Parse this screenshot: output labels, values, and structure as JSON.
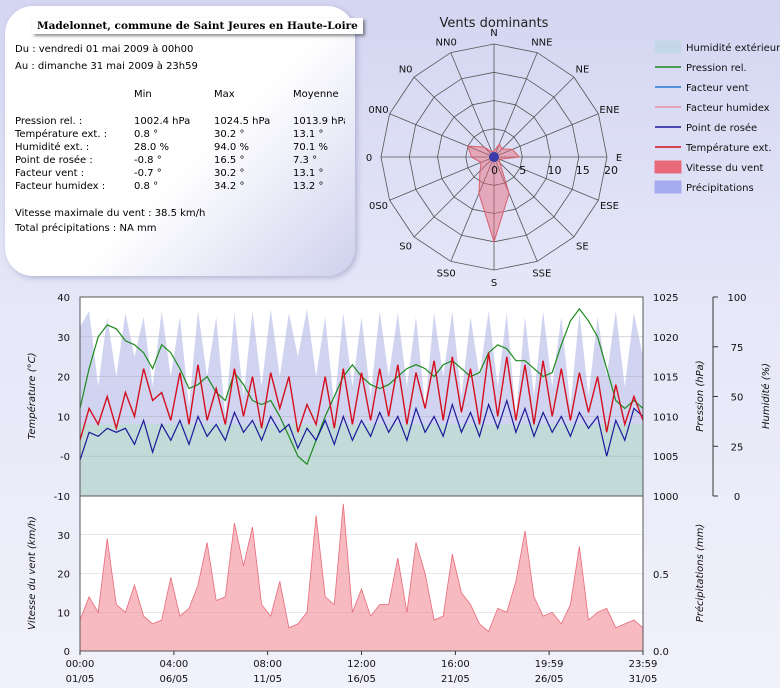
{
  "summary": {
    "station": "Madelonnet, commune de Saint Jeures en Haute-Loire",
    "from": "Du : vendredi 01 mai 2009 à 00h00",
    "to": "Au : dimanche 31 mai 2009 à 23h59",
    "headers": [
      "Min",
      "Max",
      "Moyenne"
    ],
    "rows": [
      {
        "label": "Pression rel. :",
        "min": "1002.4 hPa",
        "max": "1024.5 hPa",
        "avg": "1013.9 hPa"
      },
      {
        "label": "Température ext. :",
        "min": "0.8 °",
        "max": "30.2 °",
        "avg": "13.1 °"
      },
      {
        "label": "Humidité ext. :",
        "min": "28.0 %",
        "max": "94.0 %",
        "avg": "70.1 %"
      },
      {
        "label": "Point de rosée :",
        "min": "-0.8 °",
        "max": "16.5 °",
        "avg": "7.3 °"
      },
      {
        "label": "Facteur vent :",
        "min": "-0.7 °",
        "max": "30.2 °",
        "avg": "13.1 °"
      },
      {
        "label": "Facteur humidex :",
        "min": "0.8 °",
        "max": "34.2 °",
        "avg": "13.2 °"
      }
    ],
    "max_wind": "Vitesse maximale du vent : 38.5 km/h",
    "total_precip": "Total précipitations : NA mm"
  },
  "chart_data": [
    {
      "type": "radar",
      "title": "Vents dominants",
      "directions": [
        "N",
        "NNE",
        "NE",
        "ENE",
        "E",
        "ESE",
        "SE",
        "SSE",
        "S",
        "SS0",
        "S0",
        "0S0",
        "0",
        "0N0",
        "N0",
        "NN0"
      ],
      "radial_ticks": [
        0,
        5,
        10,
        15,
        20
      ],
      "rmax": 20,
      "series": [
        {
          "name": "Vitesse du vent",
          "values": [
            1,
            2.5,
            2,
            3.5,
            4.5,
            1,
            1.5,
            7,
            15,
            7,
            3.5,
            2.5,
            4,
            5,
            2.5,
            1
          ]
        }
      ]
    },
    {
      "type": "line",
      "x_ticks": [
        {
          "time": "00:00",
          "date": "01/05",
          "day": 0
        },
        {
          "time": "04:00",
          "date": "06/05",
          "day": 5.17
        },
        {
          "time": "08:00",
          "date": "11/05",
          "day": 10.33
        },
        {
          "time": "12:00",
          "date": "16/05",
          "day": 15.5
        },
        {
          "time": "16:00",
          "date": "21/05",
          "day": 20.67
        },
        {
          "time": "19:59",
          "date": "26/05",
          "day": 25.83
        },
        {
          "time": "23:59",
          "date": "31/05",
          "day": 31
        }
      ],
      "left_axis": {
        "label": "Température (°C)",
        "range": [
          -10,
          40
        ],
        "ticks": [
          "40",
          "30",
          "20",
          "10",
          "-0",
          "-10"
        ]
      },
      "pressure_axis": {
        "label": "Pression (hPa)",
        "range": [
          1000,
          1025
        ],
        "ticks": [
          "1025",
          "1020",
          "1015",
          "1010",
          "1005",
          "1000"
        ]
      },
      "humidity_axis": {
        "label": "Humidité (%)",
        "range": [
          0,
          100
        ],
        "ticks": [
          "100",
          "75",
          "50",
          "25",
          "0"
        ]
      },
      "legend": [
        {
          "name": "Humidité extérieure",
          "color": "#c4d7e8",
          "kind": "box"
        },
        {
          "name": "Pression rel.",
          "color": "#1b8a1b",
          "kind": "line"
        },
        {
          "name": "Facteur vent",
          "color": "#2a7bd3",
          "kind": "line"
        },
        {
          "name": "Facteur humidex",
          "color": "#ec8fa0",
          "kind": "line"
        },
        {
          "name": "Point de rosée",
          "color": "#1a1a9a",
          "kind": "line"
        },
        {
          "name": "Température ext.",
          "color": "#d40e1e",
          "kind": "line"
        },
        {
          "name": "Vitesse du vent",
          "color": "#e86a7a",
          "kind": "box"
        },
        {
          "name": "Précipitations",
          "color": "#a7acf0",
          "kind": "box"
        }
      ],
      "series": [
        {
          "name": "Pression rel.",
          "x": [
            0,
            0.5,
            1,
            1.5,
            2,
            2.5,
            3,
            3.5,
            4,
            4.5,
            5,
            5.5,
            6,
            6.5,
            7,
            7.5,
            8,
            8.5,
            9,
            9.5,
            10,
            10.5,
            11,
            11.5,
            12,
            12.5,
            13,
            13.5,
            14,
            14.5,
            15,
            15.5,
            16,
            16.5,
            17,
            17.5,
            18,
            18.5,
            19,
            19.5,
            20,
            20.5,
            21,
            21.5,
            22,
            22.5,
            23,
            23.5,
            24,
            24.5,
            25,
            25.5,
            26,
            26.5,
            27,
            27.5,
            28,
            28.5,
            29,
            29.5,
            30,
            30.5,
            31
          ],
          "y": [
            1011,
            1016,
            1020,
            1021.5,
            1021,
            1019.5,
            1019,
            1018,
            1016,
            1019,
            1018,
            1016,
            1013.5,
            1014,
            1015,
            1013,
            1012,
            1015.5,
            1014,
            1012,
            1011.5,
            1012,
            1010,
            1007.5,
            1005,
            1004,
            1007,
            1010,
            1012.5,
            1015,
            1016.5,
            1015,
            1014,
            1013.5,
            1014,
            1015,
            1016,
            1016.5,
            1016,
            1015,
            1016.5,
            1017,
            1016,
            1015,
            1015.5,
            1018,
            1019,
            1018.5,
            1017,
            1017,
            1016,
            1015,
            1015.5,
            1019,
            1022,
            1023.5,
            1022,
            1020,
            1016,
            1012,
            1011,
            1012,
            1011
          ]
        },
        {
          "name": "Humidité extérieure",
          "x": [
            0,
            0.5,
            1,
            1.5,
            2,
            2.5,
            3,
            3.5,
            4,
            4.5,
            5,
            5.5,
            6,
            6.5,
            7,
            7.5,
            8,
            8.5,
            9,
            9.5,
            10,
            10.5,
            11,
            11.5,
            12,
            12.5,
            13,
            13.5,
            14,
            14.5,
            15,
            15.5,
            16,
            16.5,
            17,
            17.5,
            18,
            18.5,
            19,
            19.5,
            20,
            20.5,
            21,
            21.5,
            22,
            22.5,
            23,
            23.5,
            24,
            24.5,
            25,
            25.5,
            26,
            26.5,
            27,
            27.5,
            28,
            28.5,
            29,
            29.5,
            30,
            30.5,
            31
          ],
          "y": [
            85,
            93,
            55,
            90,
            60,
            92,
            70,
            90,
            55,
            93,
            60,
            90,
            45,
            93,
            60,
            90,
            40,
            92,
            50,
            93,
            55,
            94,
            60,
            92,
            70,
            94,
            60,
            90,
            45,
            92,
            55,
            90,
            50,
            93,
            60,
            92,
            55,
            90,
            45,
            92,
            60,
            93,
            50,
            90,
            60,
            93,
            55,
            92,
            40,
            90,
            50,
            93,
            55,
            90,
            45,
            92,
            50,
            90,
            60,
            93,
            55,
            92,
            70
          ]
        },
        {
          "name": "Température ext.",
          "x": [
            0,
            0.5,
            1,
            1.5,
            2,
            2.5,
            3,
            3.5,
            4,
            4.5,
            5,
            5.5,
            6,
            6.5,
            7,
            7.5,
            8,
            8.5,
            9,
            9.5,
            10,
            10.5,
            11,
            11.5,
            12,
            12.5,
            13,
            13.5,
            14,
            14.5,
            15,
            15.5,
            16,
            16.5,
            17,
            17.5,
            18,
            18.5,
            19,
            19.5,
            20,
            20.5,
            21,
            21.5,
            22,
            22.5,
            23,
            23.5,
            24,
            24.5,
            25,
            25.5,
            26,
            26.5,
            27,
            27.5,
            28,
            28.5,
            29,
            29.5,
            30,
            30.5,
            31
          ],
          "y": [
            4,
            12,
            8,
            15,
            7,
            16,
            10,
            22,
            14,
            16,
            9,
            21,
            8,
            23,
            9,
            17,
            8,
            22,
            10,
            20,
            7,
            21,
            12,
            20,
            6,
            13,
            8,
            20,
            7,
            22,
            8,
            21,
            9,
            22,
            10,
            23,
            8,
            21,
            12,
            24,
            9,
            25,
            11,
            22,
            8,
            26,
            10,
            25,
            9,
            23,
            8,
            24,
            10,
            22,
            9,
            21,
            11,
            20,
            6,
            18,
            8,
            15,
            9
          ]
        },
        {
          "name": "Point de rosée",
          "x": [
            0,
            0.5,
            1,
            1.5,
            2,
            2.5,
            3,
            3.5,
            4,
            4.5,
            5,
            5.5,
            6,
            6.5,
            7,
            7.5,
            8,
            8.5,
            9,
            9.5,
            10,
            10.5,
            11,
            11.5,
            12,
            12.5,
            13,
            13.5,
            14,
            14.5,
            15,
            15.5,
            16,
            16.5,
            17,
            17.5,
            18,
            18.5,
            19,
            19.5,
            20,
            20.5,
            21,
            21.5,
            22,
            22.5,
            23,
            23.5,
            24,
            24.5,
            25,
            25.5,
            26,
            26.5,
            27,
            27.5,
            28,
            28.5,
            29,
            29.5,
            30,
            30.5,
            31
          ],
          "y": [
            -1,
            6,
            5,
            7,
            6,
            7,
            3,
            9,
            1,
            8,
            4,
            9,
            3,
            10,
            5,
            8,
            4,
            11,
            6,
            9,
            4,
            10,
            6,
            8,
            2,
            7,
            4,
            9,
            3,
            10,
            4,
            9,
            5,
            11,
            6,
            10,
            4,
            12,
            6,
            10,
            5,
            13,
            6,
            11,
            5,
            13,
            7,
            14,
            6,
            12,
            5,
            11,
            6,
            10,
            5,
            11,
            7,
            10,
            0,
            9,
            4,
            12,
            10
          ]
        },
        {
          "name": "Facteur vent",
          "x": [
            0,
            5,
            10,
            15,
            20,
            25,
            31
          ],
          "y": [
            5,
            6,
            7,
            6,
            8,
            9,
            10
          ]
        },
        {
          "name": "Facteur humidex",
          "x": [
            0,
            5,
            10,
            15,
            20,
            25,
            31
          ],
          "y": [
            5,
            7,
            8,
            7,
            9,
            10,
            11
          ]
        },
        {
          "name": "Vitesse du vent",
          "x": [
            0,
            0.5,
            1,
            1.5,
            2,
            2.5,
            3,
            3.5,
            4,
            4.5,
            5,
            5.5,
            6,
            6.5,
            7,
            7.5,
            8,
            8.5,
            9,
            9.5,
            10,
            10.5,
            11,
            11.5,
            12,
            12.5,
            13,
            13.5,
            14,
            14.5,
            15,
            15.5,
            16,
            16.5,
            17,
            17.5,
            18,
            18.5,
            19,
            19.5,
            20,
            20.5,
            21,
            21.5,
            22,
            22.5,
            23,
            23.5,
            24,
            24.5,
            25,
            25.5,
            26,
            26.5,
            27,
            27.5,
            28,
            28.5,
            29,
            29.5,
            30,
            30.5,
            31
          ],
          "y": [
            8,
            14,
            10,
            29,
            12,
            10,
            17,
            9,
            7,
            8,
            19,
            9,
            11,
            17,
            28,
            13,
            14,
            33,
            22,
            32,
            12,
            9,
            18,
            6,
            7,
            10,
            35,
            14,
            12,
            38,
            10,
            16,
            9,
            12,
            12,
            24,
            10,
            28,
            20,
            8,
            9,
            25,
            15,
            12,
            7,
            5,
            11,
            10,
            18,
            31,
            14,
            9,
            10,
            7,
            12,
            27,
            8,
            10,
            11,
            6,
            7,
            8,
            6
          ]
        },
        {
          "name": "Précipitations",
          "x": [
            0,
            31
          ],
          "y": [
            0,
            0
          ]
        }
      ],
      "bottom_left_axis": {
        "label": "Vitesse du vent (km/h)",
        "range": [
          0,
          40
        ],
        "ticks": [
          "30",
          "20",
          "10",
          "0"
        ]
      },
      "bottom_right_axis": {
        "label": "Précipitations (mm)",
        "range": [
          0,
          1
        ],
        "ticks": [
          "0.5",
          "0.0"
        ]
      }
    }
  ]
}
